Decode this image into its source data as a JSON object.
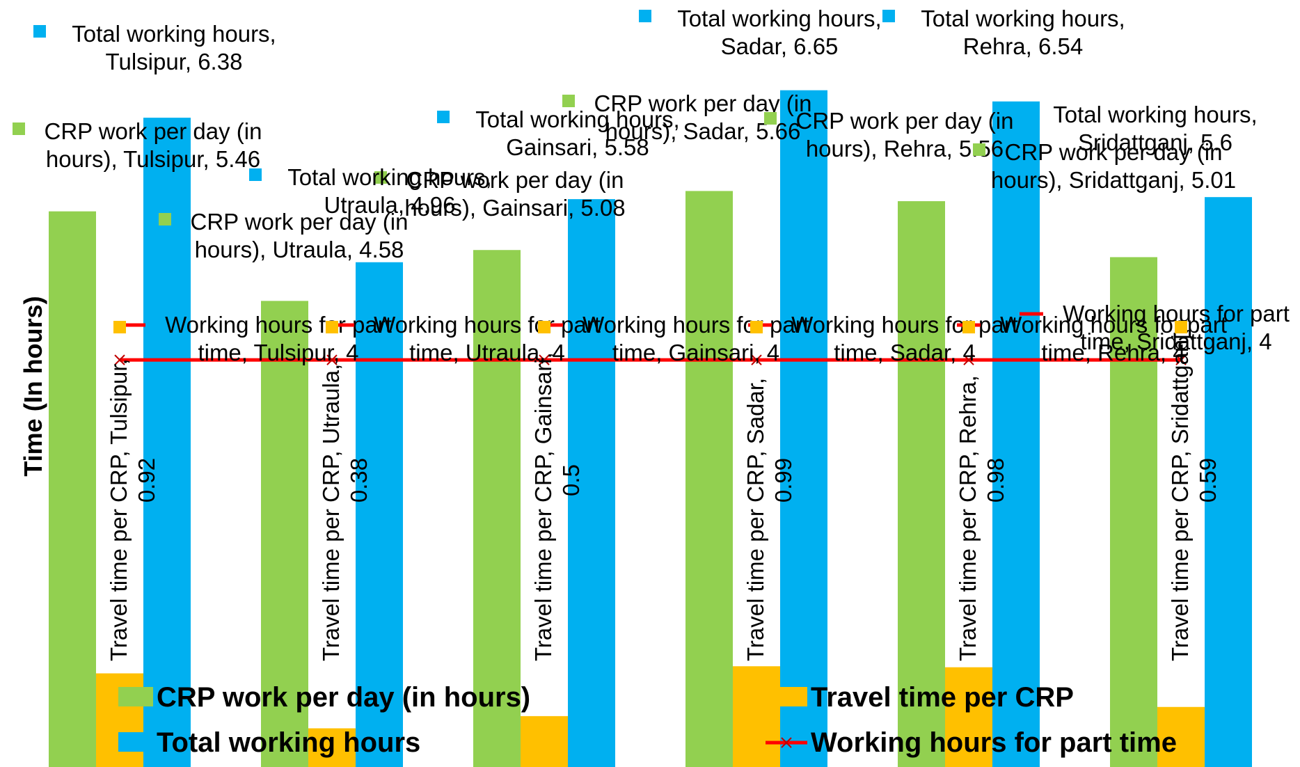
{
  "chart_data": {
    "type": "bar",
    "title": "",
    "xlabel": "",
    "ylabel": "Time (In hours)",
    "ylim": [
      0,
      7.4
    ],
    "categories": [
      "Tulsipur",
      "Utraula",
      "Gainsari",
      "Sadar",
      "Rehra",
      "Sridattganj"
    ],
    "series": [
      {
        "name": "CRP work per day (in hours)",
        "kind": "bar",
        "color": "#92D050",
        "values": [
          5.46,
          4.58,
          5.08,
          5.66,
          5.56,
          5.01
        ],
        "labels": [
          "CRP work per day (in hours), Tulsipur, 5.46",
          "CRP work per day (in hours), Utraula, 4.58",
          "CRP work per day (in hours), Gainsari, 5.08",
          "CRP work per day (in hours), Sadar, 5.66",
          "CRP work per day (in hours), Rehra, 5.56",
          "CRP work per day (in hours), Sridattganj, 5.01"
        ]
      },
      {
        "name": "Travel time per CRP",
        "kind": "bar",
        "color": "#FFC000",
        "values": [
          0.92,
          0.38,
          0.5,
          0.99,
          0.98,
          0.59
        ],
        "labels": [
          "Travel time per CRP, Tulsipur, 0.92",
          "Travel time per CRP, Utraula, 0.38",
          "Travel time per CRP, Gainsari, 0.5",
          "Travel time per CRP, Sadar, 0.99",
          "Travel time per CRP, Rehra, 0.98",
          "Travel time per CRP, Sridattganj, 0.59"
        ]
      },
      {
        "name": "Total working hours",
        "kind": "bar",
        "color": "#00B0F0",
        "values": [
          6.38,
          4.96,
          5.58,
          6.65,
          6.54,
          5.6
        ],
        "labels": [
          "Total working hours, Tulsipur, 6.38",
          "Total working hours, Utraula, 4.96",
          "Total working hours, Gainsari, 5.58",
          "Total working hours, Sadar, 6.65",
          "Total working hours, Rehra, 6.54",
          "Total working hours, Sridattganj, 5.6"
        ]
      },
      {
        "name": "Working hours for part time",
        "kind": "line",
        "color": "#FF0000",
        "values": [
          4,
          4,
          4,
          4,
          4,
          4
        ],
        "labels": [
          "Working hours for part time, Tulsipur, 4",
          "Working hours for part time, Utraula, 4",
          "Working hours for part time, Gainsari, 4",
          "Working hours for part time, Sadar, 4",
          "Working hours for part time, Rehra, 4",
          "Working hours for part time, Sridattganj, 4"
        ]
      }
    ],
    "legend": {
      "position": "bottom",
      "items": [
        {
          "label": "CRP work per day (in hours)",
          "color": "#92D050"
        },
        {
          "label": "Travel time per CRP",
          "color": "#FFC000"
        },
        {
          "label": "Total working hours",
          "color": "#00B0F0"
        },
        {
          "label": "Working hours for part time",
          "color": "#FF0000"
        }
      ]
    },
    "grid": false
  }
}
